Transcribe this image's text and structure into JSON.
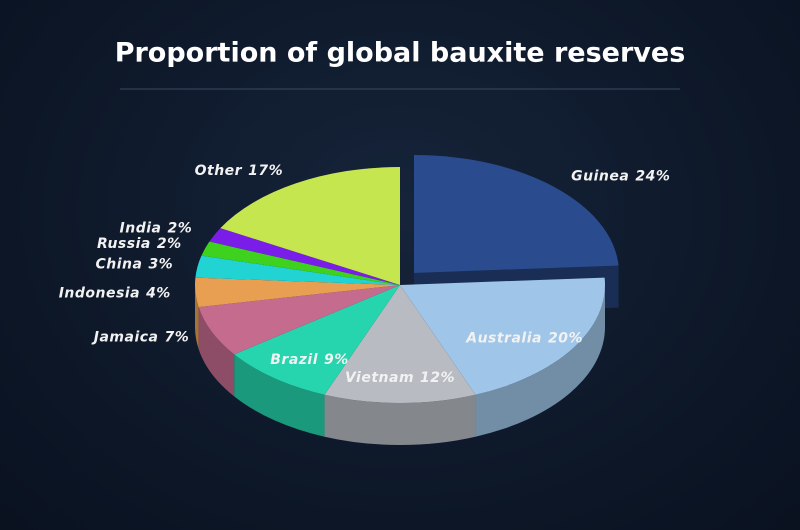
{
  "chart_data": {
    "type": "pie3d",
    "title": "Proportion of global bauxite reserves",
    "categories": [
      "Guinea",
      "Australia",
      "Vietnam",
      "Brazil",
      "Jamaica",
      "Indonesia",
      "China",
      "Russia",
      "India",
      "Other"
    ],
    "values": [
      24,
      20,
      12,
      9,
      7,
      4,
      3,
      2,
      2,
      17
    ],
    "value_labels": [
      "24%",
      "20%",
      "12%",
      "9%",
      "7%",
      "4%",
      "3%",
      "2%",
      "2%",
      "17%"
    ],
    "colors": [
      "#2a4b8d",
      "#9fc5e8",
      "#b8bbc1",
      "#26d4ad",
      "#c56b8e",
      "#e89f52",
      "#22d3d3",
      "#3ed11e",
      "#7a1de8",
      "#c6e650"
    ]
  }
}
